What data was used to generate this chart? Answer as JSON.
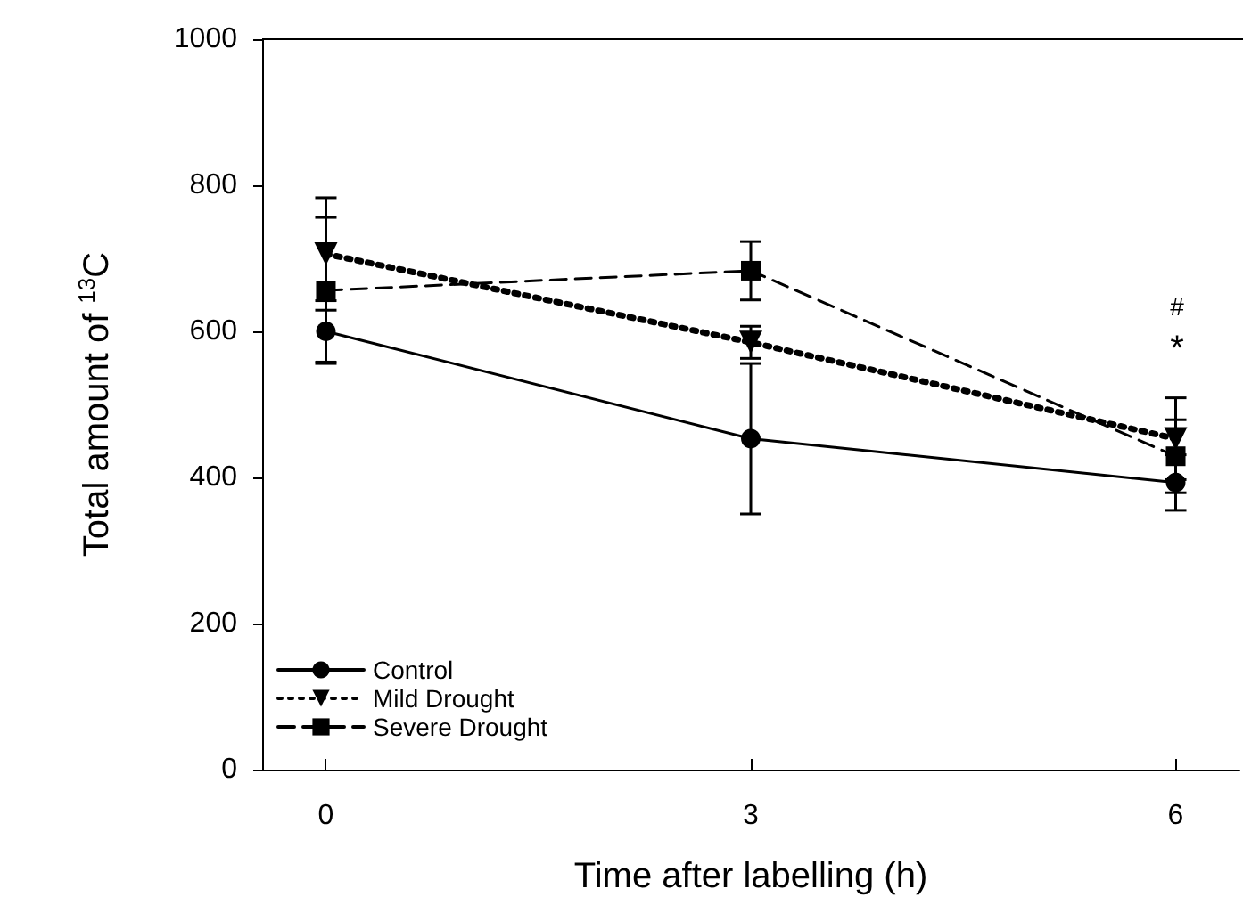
{
  "chart_data": {
    "type": "line",
    "xlabel": "Time after labelling (h)",
    "ylabel": "Total amount of $^{13}$C",
    "x": [
      0,
      3,
      6
    ],
    "xlim": [
      -0.45,
      6.45
    ],
    "xticks": [
      0,
      3,
      6
    ],
    "ylim": [
      0,
      1000
    ],
    "yticks": [
      0,
      200,
      400,
      600,
      800,
      1000
    ],
    "series": [
      {
        "name": "Control",
        "color": "#000000",
        "values": [
          600,
          453,
          393
        ],
        "errors": [
          42,
          103,
          38
        ],
        "marker": "circle",
        "line_style": "solid"
      },
      {
        "name": "Mild Drought",
        "color": "#000000",
        "values": [
          706,
          585,
          453
        ],
        "errors": [
          77,
          22,
          56
        ],
        "marker": "triangle",
        "line_style": "dotted"
      },
      {
        "name": "Severe Drought",
        "color": "#000000",
        "values": [
          656,
          683,
          429
        ],
        "errors": [
          100,
          40,
          50
        ],
        "marker": "square",
        "line_style": "dashed"
      }
    ],
    "annotations": [
      "#",
      "*"
    ],
    "legend": "bottom left",
    "grid": false
  }
}
